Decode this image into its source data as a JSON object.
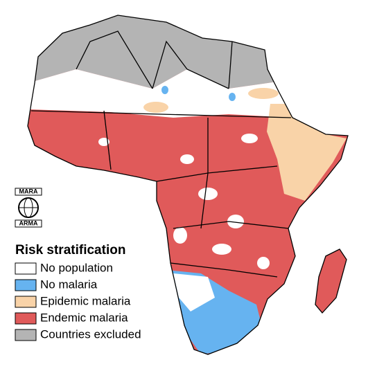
{
  "logo": {
    "top": "MARA",
    "bottom": "ARMA"
  },
  "legend": {
    "title": "Risk stratification",
    "items": [
      {
        "label": "No population",
        "color": "#ffffff"
      },
      {
        "label": "No malaria",
        "color": "#66b3f0"
      },
      {
        "label": "Epidemic malaria",
        "color": "#f9d3a8"
      },
      {
        "label": "Endemic malaria",
        "color": "#e05a5a"
      },
      {
        "label": "Countries excluded",
        "color": "#b4b4b4"
      }
    ]
  }
}
